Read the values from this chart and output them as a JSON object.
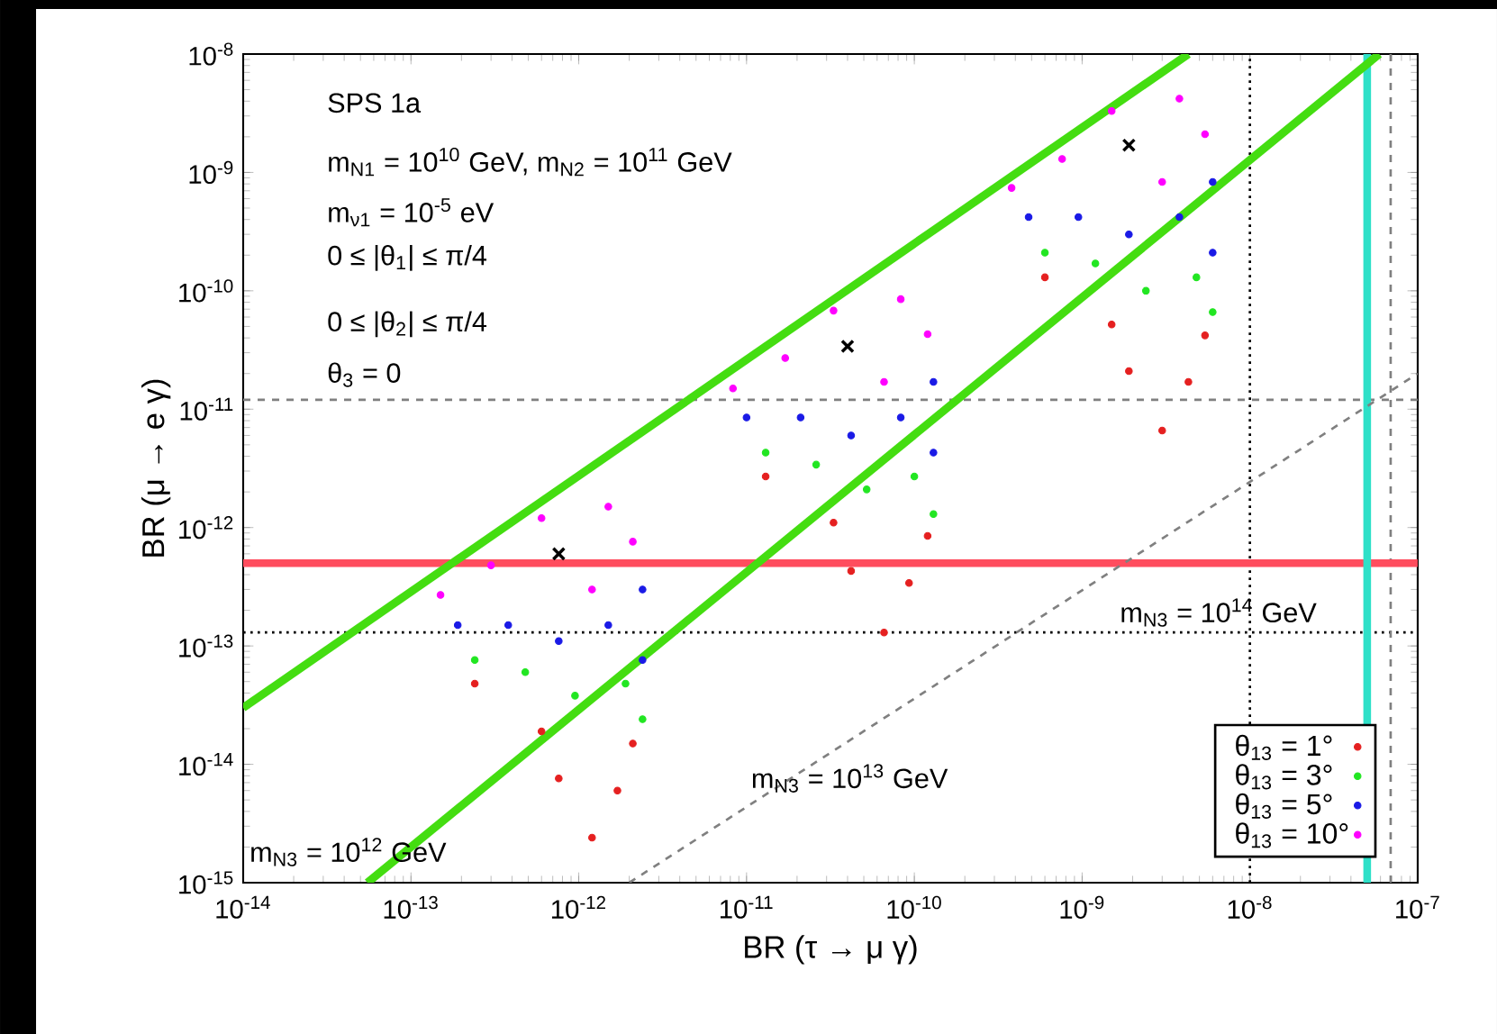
{
  "chart_data": {
    "type": "scatter",
    "log": "xy",
    "xlabel": "BR (τ → μ γ)",
    "ylabel": "BR (μ → e γ)",
    "xlim": [
      1e-14,
      1e-07
    ],
    "ylim": [
      1e-15,
      1e-08
    ],
    "xticks": [
      {
        "value": 1e-14,
        "label": "10$^{-14}$"
      },
      {
        "value": 1e-13,
        "label": "10$^{-13}$"
      },
      {
        "value": 1e-12,
        "label": "10$^{-12}$"
      },
      {
        "value": 1e-11,
        "label": "10$^{-11}$"
      },
      {
        "value": 1e-10,
        "label": "10$^{-10}$"
      },
      {
        "value": 1e-09,
        "label": "10$^{-9}$"
      },
      {
        "value": 1e-08,
        "label": "10$^{-8}$"
      },
      {
        "value": 1e-07,
        "label": "10$^{-7}$"
      }
    ],
    "yticks": [
      {
        "value": 1e-15,
        "label": "10$^{-15}$"
      },
      {
        "value": 1e-14,
        "label": "10$^{-14}$"
      },
      {
        "value": 1e-13,
        "label": "10$^{-13}$"
      },
      {
        "value": 1e-12,
        "label": "10$^{-12}$"
      },
      {
        "value": 1e-11,
        "label": "10$^{-11}$"
      },
      {
        "value": 1e-10,
        "label": "10$^{-10}$"
      },
      {
        "value": 1e-09,
        "label": "10$^{-9}$"
      },
      {
        "value": 1e-08,
        "label": "10$^{-8}$"
      }
    ],
    "legend": "bottom right",
    "series": [
      {
        "name": "θ$_{13}$ = 1°",
        "color": "#e52020",
        "marker": "circle",
        "x": [
          2.4e-13,
          6e-13,
          7.6e-13,
          1.2e-12,
          1.7e-12,
          2.1e-12,
          1.3e-11,
          3.3e-11,
          4.2e-11,
          6.6e-11,
          9.3e-11,
          1.2e-10,
          6e-10,
          1.5e-09,
          1.9e-09,
          3e-09,
          4.3e-09,
          5.4e-09
        ],
        "values": [
          4.8e-14,
          1.9e-14,
          7.6e-15,
          2.4e-15,
          6e-15,
          1.5e-14,
          2.7e-12,
          1.1e-12,
          4.3e-13,
          1.3e-13,
          3.4e-13,
          8.5e-13,
          1.3e-10,
          5.2e-11,
          2.1e-11,
          6.6e-12,
          1.7e-11,
          4.2e-11
        ]
      },
      {
        "name": "θ$_{13}$ = 3°",
        "color": "#22e622",
        "marker": "circle",
        "x": [
          2.4e-13,
          4.8e-13,
          9.5e-13,
          1.9e-12,
          2.4e-12,
          1.3e-11,
          2.6e-11,
          5.2e-11,
          1e-10,
          1.3e-10,
          6e-10,
          1.2e-09,
          2.4e-09,
          4.8e-09,
          6e-09
        ],
        "values": [
          7.6e-14,
          6e-14,
          3.8e-14,
          4.8e-14,
          2.4e-14,
          4.3e-12,
          3.4e-12,
          2.1e-12,
          2.7e-12,
          1.3e-12,
          2.1e-10,
          1.7e-10,
          1e-10,
          1.3e-10,
          6.6e-11
        ]
      },
      {
        "name": "θ$_{13}$ = 5°",
        "color": "#1a1ae6",
        "marker": "circle",
        "x": [
          1.9e-13,
          3.8e-13,
          7.6e-13,
          1.5e-12,
          2.4e-12,
          2.4e-12,
          1e-11,
          2.1e-11,
          4.2e-11,
          8.3e-11,
          1.3e-10,
          1.3e-10,
          4.8e-10,
          9.5e-10,
          1.9e-09,
          3.8e-09,
          6e-09,
          6e-09
        ],
        "values": [
          1.5e-13,
          1.5e-13,
          1.1e-13,
          1.5e-13,
          3e-13,
          7.6e-14,
          8.5e-12,
          8.5e-12,
          6e-12,
          8.5e-12,
          1.7e-11,
          4.3e-12,
          4.2e-10,
          4.2e-10,
          3e-10,
          4.2e-10,
          8.3e-10,
          2.1e-10
        ]
      },
      {
        "name": "θ$_{13}$ = 10°",
        "color": "#ff00ff",
        "marker": "circle",
        "x": [
          1.5e-13,
          3e-13,
          6e-13,
          1.5e-12,
          2.1e-12,
          1.2e-12,
          8.3e-12,
          1.7e-11,
          3.3e-11,
          8.3e-11,
          1.2e-10,
          6.6e-11,
          3.8e-10,
          7.6e-10,
          1.5e-09,
          3.8e-09,
          5.4e-09,
          3e-09
        ],
        "values": [
          2.7e-13,
          4.8e-13,
          1.2e-12,
          1.5e-12,
          7.6e-13,
          3e-13,
          1.5e-11,
          2.7e-11,
          6.8e-11,
          8.5e-11,
          4.3e-11,
          1.7e-11,
          7.4e-10,
          1.3e-09,
          3.3e-09,
          4.2e-09,
          2.1e-09,
          8.3e-10
        ]
      },
      {
        "color": "#000000",
        "marker": "cross",
        "x": [
          7.6e-13,
          4e-11,
          1.9e-09
        ],
        "values": [
          6e-13,
          3.4e-11,
          1.7e-09
        ]
      },
      {
        "type": "line",
        "color": "#808080",
        "line_style": "dashed",
        "x": [
          2e-12,
          1e-07
        ],
        "values": [
          1e-15,
          2e-11
        ]
      },
      {
        "type": "line",
        "color": "#44dd11",
        "line_style": "solid",
        "x": [
          1e-14,
          4.3e-09
        ],
        "values": [
          3e-14,
          1e-08
        ]
      },
      {
        "type": "line",
        "color": "#44dd11",
        "line_style": "solid",
        "x": [
          5.5e-14,
          5.9e-08
        ],
        "values": [
          1e-15,
          1e-08
        ]
      }
    ],
    "ref_lines": [
      {
        "axis": "y",
        "value": 1.2e-11,
        "color": "#808080",
        "line_style": "dashed"
      },
      {
        "axis": "y",
        "value": 1.3e-13,
        "color": "#000000",
        "line_style": "dotted"
      },
      {
        "axis": "x",
        "value": 1e-08,
        "color": "#000000",
        "line_style": "dotted"
      },
      {
        "axis": "x",
        "value": 6.9e-08,
        "color": "#808080",
        "line_style": "dashed"
      },
      {
        "axis": "y",
        "value": 5e-13,
        "color": "#ff4d5e",
        "line_style": "solid"
      },
      {
        "axis": "x",
        "value": 5e-08,
        "color": "#2ee0c8",
        "line_style": "solid"
      }
    ],
    "annotations": [
      "SPS 1a",
      "m$_{N1}$ = 10$^{10}$ GeV, m$_{N2}$ = 10$^{11}$ GeV",
      "m$_{ν1}$ = 10$^{-5}$ eV",
      "0 ≤ |θ$_{1}$| ≤ π/4",
      "0 ≤ |θ$_{2}$| ≤ π/4",
      "θ$_{3}$ = 0",
      "m$_{N3}$ = 10$^{12}$ GeV",
      "m$_{N3}$ = 10$^{13}$ GeV",
      "m$_{N3}$ = 10$^{14}$ GeV"
    ]
  }
}
